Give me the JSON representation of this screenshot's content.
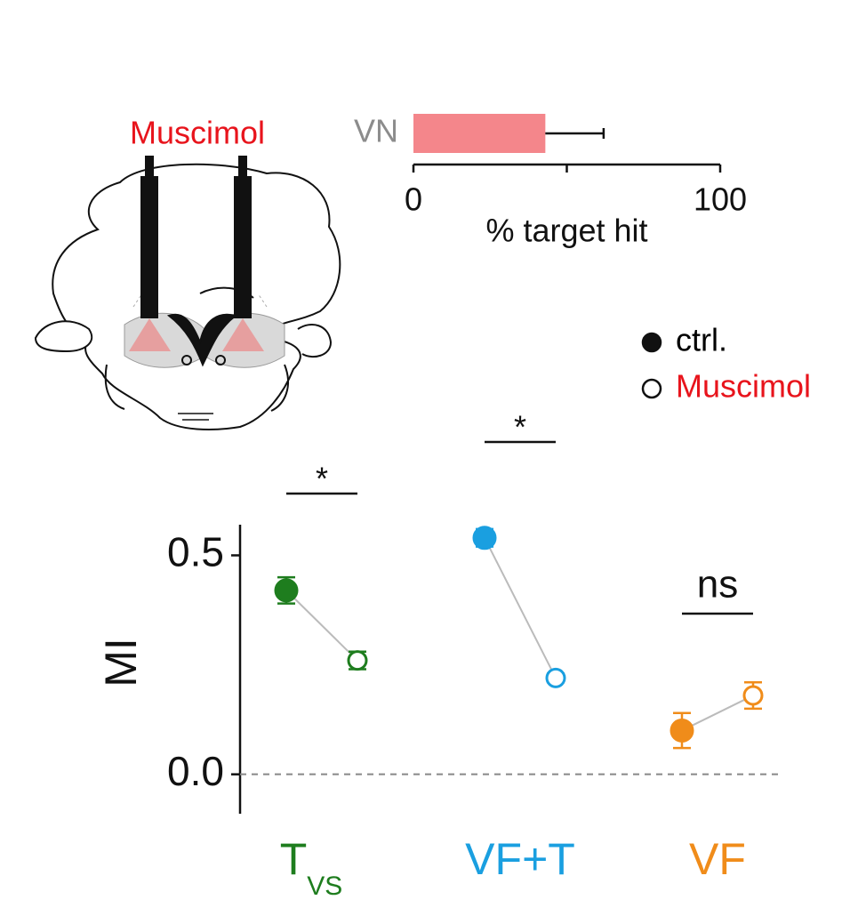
{
  "label": "Muscimol",
  "chart_data": [
    {
      "type": "hbar",
      "categories": [
        "VN"
      ],
      "values": [
        43
      ],
      "errors": [
        19
      ],
      "color": "#f4868b",
      "xlabel": "% target hit",
      "xlim": [
        0,
        100
      ],
      "xticks": [
        0,
        100
      ],
      "xminor_ticks": [
        50
      ]
    },
    {
      "type": "dot",
      "ylabel": "MI",
      "categories": [
        "T",
        "VF+T",
        "VF"
      ],
      "category_subscripts": [
        "VS",
        null,
        null
      ],
      "category_colors": [
        "#1e7d1e",
        "#1a9fe0",
        "#f08c1a"
      ],
      "significance": [
        "*",
        "*",
        "ns"
      ],
      "series": [
        {
          "name": "ctrl.",
          "color": "#000000",
          "filled": true,
          "values": [
            0.42,
            0.54,
            0.1
          ],
          "errors": [
            0.03,
            0.02,
            0.04
          ]
        },
        {
          "name": "Muscimol",
          "color": "#e8141c",
          "filled": false,
          "values": [
            0.26,
            0.22,
            0.18
          ],
          "errors": [
            0.02,
            0.01,
            0.03
          ]
        }
      ],
      "ylim": [
        -0.09,
        0.57
      ],
      "yticks": [
        {
          "value": 0,
          "label": "0.0"
        },
        {
          "value": 0.5,
          "label": "0.5"
        }
      ],
      "zero_line": true
    }
  ]
}
